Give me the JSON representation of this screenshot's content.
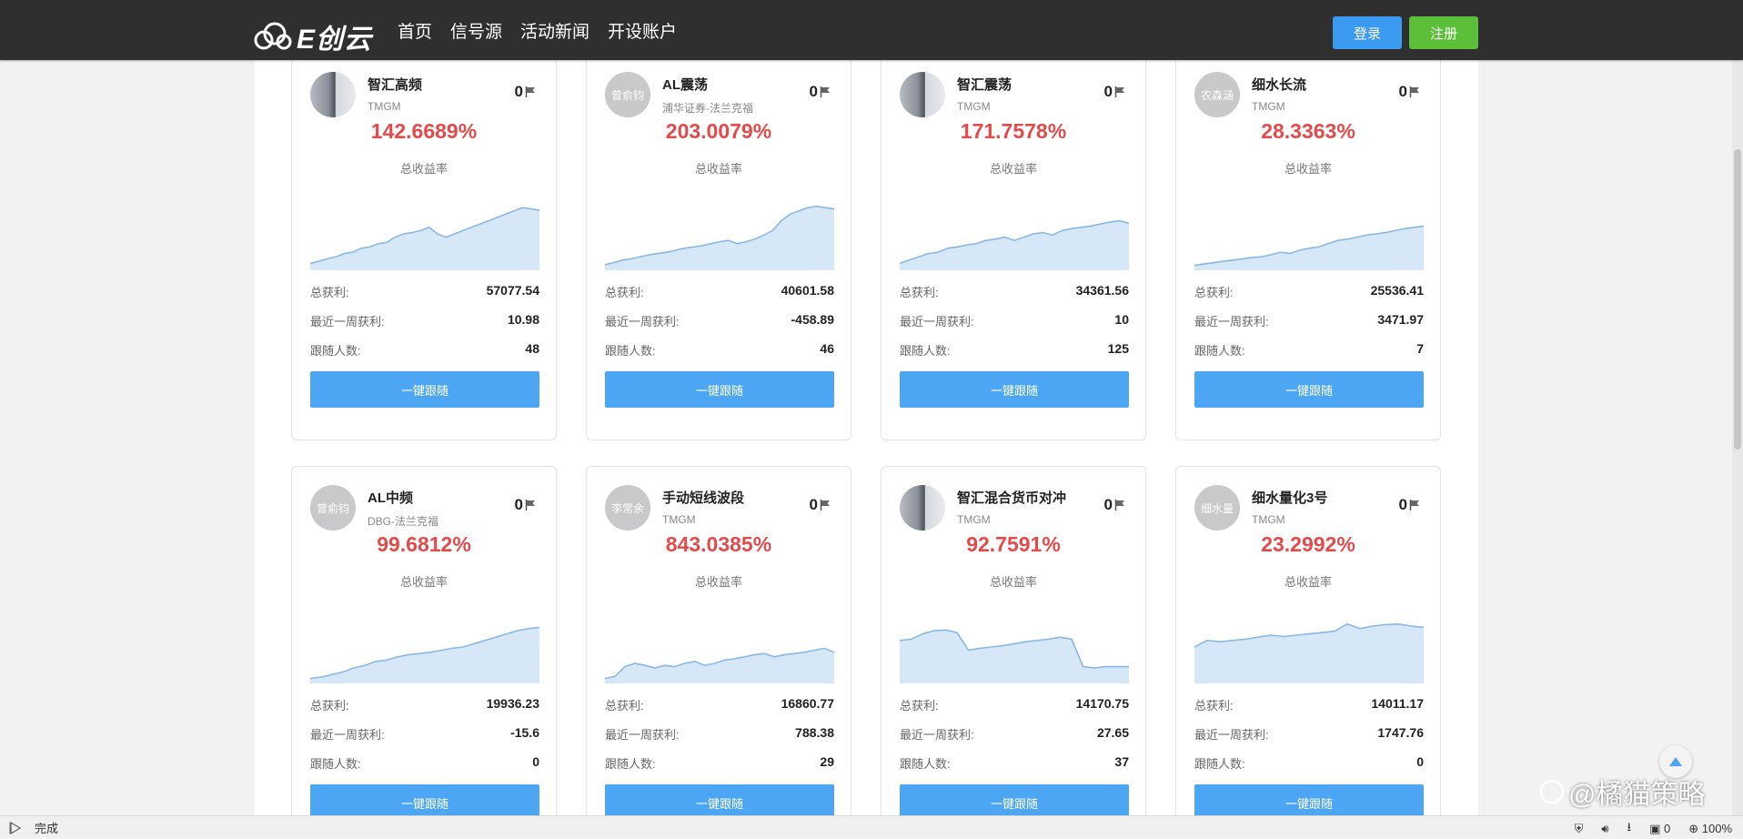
{
  "brand": {
    "name": "E创云"
  },
  "nav": [
    "首页",
    "信号源",
    "活动新闻",
    "开设账户"
  ],
  "auth": {
    "login": "登录",
    "register": "注册"
  },
  "labels": {
    "rate": "总收益率",
    "profit": "总获利:",
    "week": "最近一周获利:",
    "followers": "跟随人数:",
    "follow_btn": "一键跟随"
  },
  "colors": {
    "rate_red": "#e34b4b",
    "primary_blue": "#4ca6f4",
    "register_green": "#5cbf3a"
  },
  "cards": [
    {
      "name": "智汇高频",
      "broker": "TMGM",
      "avatar": "photo",
      "avatar_text": "",
      "flag": "0",
      "rate": "142.6689%",
      "profit": "57077.54",
      "week": "10.98",
      "followers": "48",
      "curve": [
        0.05,
        0.08,
        0.12,
        0.15,
        0.2,
        0.22,
        0.28,
        0.3,
        0.35,
        0.37,
        0.45,
        0.5,
        0.52,
        0.55,
        0.6,
        0.5,
        0.45,
        0.5,
        0.55,
        0.6,
        0.65,
        0.7,
        0.75,
        0.8,
        0.85,
        0.9,
        0.88,
        0.86
      ]
    },
    {
      "name": "AL震荡",
      "broker": "浦华证券-法兰克福",
      "avatar": "text",
      "avatar_text": "曾俞钧",
      "flag": "0",
      "rate": "203.0079%",
      "profit": "40601.58",
      "week": "-458.89",
      "followers": "46",
      "curve": [
        0.03,
        0.06,
        0.1,
        0.12,
        0.15,
        0.18,
        0.2,
        0.22,
        0.25,
        0.28,
        0.3,
        0.32,
        0.35,
        0.38,
        0.4,
        0.35,
        0.38,
        0.42,
        0.48,
        0.55,
        0.7,
        0.8,
        0.85,
        0.9,
        0.92,
        0.9,
        0.88
      ]
    },
    {
      "name": "智汇震荡",
      "broker": "TMGM",
      "avatar": "photo",
      "avatar_text": "",
      "flag": "0",
      "rate": "171.7578%",
      "profit": "34361.56",
      "week": "10",
      "followers": "125",
      "curve": [
        0.05,
        0.1,
        0.15,
        0.2,
        0.22,
        0.28,
        0.3,
        0.33,
        0.35,
        0.4,
        0.42,
        0.45,
        0.4,
        0.45,
        0.5,
        0.52,
        0.48,
        0.55,
        0.58,
        0.6,
        0.62,
        0.65,
        0.68,
        0.7,
        0.66
      ]
    },
    {
      "name": "细水长流",
      "broker": "TMGM",
      "avatar": "text",
      "avatar_text": "农森涵",
      "flag": "0",
      "rate": "28.3363%",
      "profit": "25536.41",
      "week": "3471.97",
      "followers": "7",
      "curve": [
        0.02,
        0.04,
        0.06,
        0.08,
        0.1,
        0.12,
        0.14,
        0.15,
        0.18,
        0.22,
        0.2,
        0.25,
        0.28,
        0.3,
        0.35,
        0.4,
        0.42,
        0.45,
        0.48,
        0.5,
        0.52,
        0.55,
        0.58,
        0.6,
        0.62
      ]
    },
    {
      "name": "AL中频",
      "broker": "DBG-法兰克福",
      "avatar": "text",
      "avatar_text": "曾俞钧",
      "flag": "0",
      "rate": "99.6812%",
      "profit": "19936.23",
      "week": "-15.6",
      "followers": "0",
      "curve": [
        0.02,
        0.04,
        0.08,
        0.12,
        0.18,
        0.22,
        0.28,
        0.3,
        0.35,
        0.38,
        0.4,
        0.42,
        0.45,
        0.48,
        0.5,
        0.55,
        0.6,
        0.65,
        0.7,
        0.75,
        0.78,
        0.8
      ]
    },
    {
      "name": "手动短线波段",
      "broker": "TMGM",
      "avatar": "text",
      "avatar_text": "李常余",
      "flag": "0",
      "rate": "843.0385%",
      "profit": "16860.77",
      "week": "788.38",
      "followers": "29",
      "curve": [
        0.02,
        0.05,
        0.2,
        0.25,
        0.22,
        0.18,
        0.22,
        0.2,
        0.25,
        0.28,
        0.22,
        0.25,
        0.3,
        0.32,
        0.35,
        0.38,
        0.4,
        0.35,
        0.38,
        0.4,
        0.42,
        0.45,
        0.48,
        0.42
      ]
    },
    {
      "name": "智汇混合货币对冲",
      "broker": "TMGM",
      "avatar": "photo",
      "avatar_text": "",
      "flag": "0",
      "rate": "92.7591%",
      "profit": "14170.75",
      "week": "27.65",
      "followers": "37",
      "curve": [
        0.6,
        0.62,
        0.7,
        0.75,
        0.76,
        0.72,
        0.45,
        0.48,
        0.5,
        0.52,
        0.55,
        0.58,
        0.6,
        0.62,
        0.65,
        0.62,
        0.2,
        0.18,
        0.2,
        0.2,
        0.2
      ]
    },
    {
      "name": "细水量化3号",
      "broker": "TMGM",
      "avatar": "text",
      "avatar_text": "细水量",
      "flag": "0",
      "rate": "23.2992%",
      "profit": "14011.17",
      "week": "1747.76",
      "followers": "0",
      "curve": [
        0.5,
        0.6,
        0.58,
        0.6,
        0.62,
        0.65,
        0.68,
        0.66,
        0.68,
        0.7,
        0.72,
        0.74,
        0.85,
        0.78,
        0.82,
        0.84,
        0.85,
        0.82,
        0.8
      ]
    }
  ],
  "status": {
    "text": "完成",
    "counter": "0",
    "zoom": "100%"
  },
  "watermark": "@橘猫策略"
}
